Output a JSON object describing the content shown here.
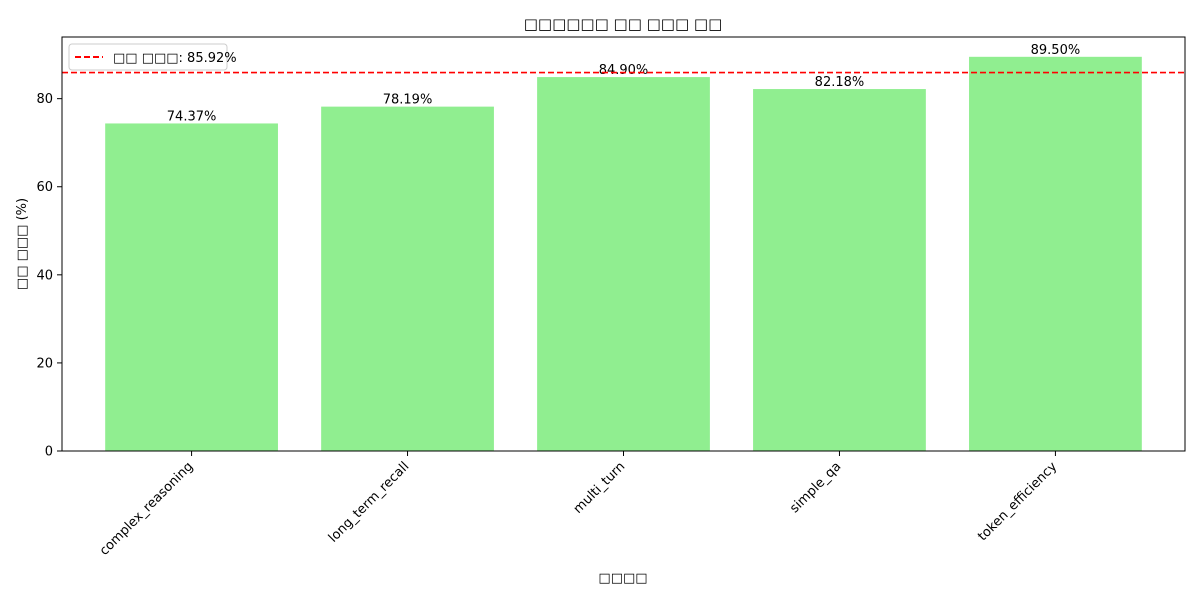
{
  "chart_data": {
    "type": "bar",
    "title": "□□□□□□ □□ □□□ □□",
    "xlabel": "□□□□",
    "ylabel": "□□ □□□ (%)",
    "categories": [
      "complex_reasoning",
      "long_term_recall",
      "multi_turn",
      "simple_qa",
      "token_efficiency"
    ],
    "values": [
      74.37,
      78.19,
      84.9,
      82.18,
      89.5
    ],
    "value_labels": [
      "74.37%",
      "78.19%",
      "84.90%",
      "82.18%",
      "89.50%"
    ],
    "ylim": [
      0,
      94
    ],
    "yticks": [
      0,
      20,
      40,
      60,
      80
    ],
    "ytick_labels": [
      "0",
      "20",
      "40",
      "60",
      "80"
    ],
    "bar_color": "#90ee90",
    "reference_line": {
      "value": 85.92,
      "label": "□□ □□□: 85.92%",
      "color": "#ff0000",
      "style": "dashed"
    },
    "legend_position": "top-left",
    "grid": false
  }
}
